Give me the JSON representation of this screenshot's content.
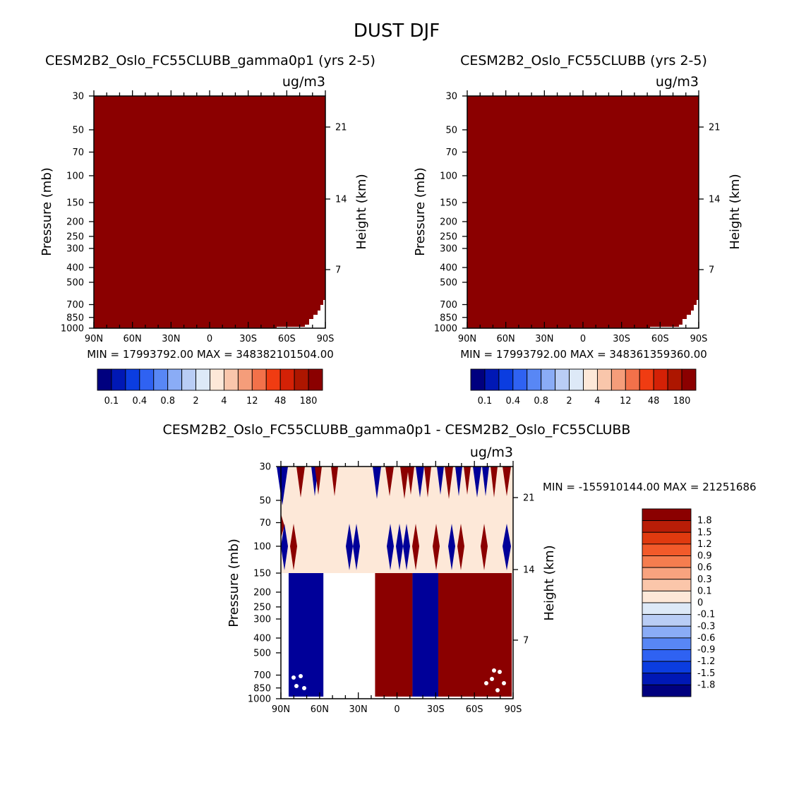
{
  "main_title": "DUST DJF",
  "colors": {
    "dark_red": "#8b0000",
    "dark_blue": "#000099",
    "cream": "#fde8d8",
    "white": "#ffffff"
  },
  "panels": [
    {
      "id": "panel-1",
      "title": "CESM2B2_Oslo_FC55CLUBB_gamma0p1 (yrs 2-5)",
      "units": "ug/m3",
      "ylabel": "Pressure (mb)",
      "ylabel_right": "Height (km)",
      "minmax": "MIN = 17993792.00   MAX = 348382101504.00"
    },
    {
      "id": "panel-2",
      "title": "CESM2B2_Oslo_FC55CLUBB (yrs 2-5)",
      "units": "ug/m3",
      "ylabel": "Pressure (mb)",
      "ylabel_right": "Height (km)",
      "minmax": "MIN = 17993792.00   MAX = 348361359360.00"
    },
    {
      "id": "panel-3",
      "title": "CESM2B2_Oslo_FC55CLUBB_gamma0p1 - CESM2B2_Oslo_FC55CLUBB",
      "units": "ug/m3",
      "ylabel": "Pressure (mb)",
      "ylabel_right": "Height (km)",
      "minmax": "MIN = -155910144.00   MAX = 21251686"
    }
  ],
  "chart_data": [
    {
      "type": "heatmap",
      "title": "CESM2B2_Oslo_FC55CLUBB_gamma0p1 (yrs 2-5)",
      "ylabel": "Pressure (mb)",
      "ylabel_right": "Height (km)",
      "units": "ug/m3",
      "x_ticks": [
        "90N",
        "60N",
        "30N",
        "0",
        "30S",
        "60S",
        "90S"
      ],
      "y_ticks": [
        30,
        50,
        70,
        100,
        150,
        200,
        250,
        300,
        400,
        500,
        700,
        850,
        1000
      ],
      "y_ticks_right": [
        21,
        14,
        7
      ],
      "ylim": [
        1000,
        30
      ],
      "y_scale": "log",
      "colorbar_labels": [
        "0.1",
        "0.4",
        "0.8",
        "2",
        "4",
        "12",
        "48",
        "180"
      ],
      "colorbar_colors": [
        "#00007f",
        "#0018b5",
        "#0b3de0",
        "#2f62f2",
        "#5887f5",
        "#8aacf6",
        "#b9cdf5",
        "#dde9f7",
        "#fde8d8",
        "#f9c6ab",
        "#f59d7a",
        "#f2714a",
        "#f03c12",
        "#d42106",
        "#ad1600",
        "#8b0000"
      ],
      "min": 17993792.0,
      "max": 348382101504.0,
      "dominant_color": "#8b0000"
    },
    {
      "type": "heatmap",
      "title": "CESM2B2_Oslo_FC55CLUBB (yrs 2-5)",
      "ylabel": "Pressure (mb)",
      "ylabel_right": "Height (km)",
      "units": "ug/m3",
      "x_ticks": [
        "90N",
        "60N",
        "30N",
        "0",
        "30S",
        "60S",
        "90S"
      ],
      "y_ticks": [
        30,
        50,
        70,
        100,
        150,
        200,
        250,
        300,
        400,
        500,
        700,
        850,
        1000
      ],
      "y_ticks_right": [
        21,
        14,
        7
      ],
      "ylim": [
        1000,
        30
      ],
      "y_scale": "log",
      "colorbar_labels": [
        "0.1",
        "0.4",
        "0.8",
        "2",
        "4",
        "12",
        "48",
        "180"
      ],
      "colorbar_colors": [
        "#00007f",
        "#0018b5",
        "#0b3de0",
        "#2f62f2",
        "#5887f5",
        "#8aacf6",
        "#b9cdf5",
        "#dde9f7",
        "#fde8d8",
        "#f9c6ab",
        "#f59d7a",
        "#f2714a",
        "#f03c12",
        "#d42106",
        "#ad1600",
        "#8b0000"
      ],
      "min": 17993792.0,
      "max": 348361359360.0,
      "dominant_color": "#8b0000"
    },
    {
      "type": "heatmap",
      "title": "CESM2B2_Oslo_FC55CLUBB_gamma0p1 - CESM2B2_Oslo_FC55CLUBB",
      "ylabel": "Pressure (mb)",
      "ylabel_right": "Height (km)",
      "units": "ug/m3",
      "x_ticks": [
        "90N",
        "60N",
        "30N",
        "0",
        "30S",
        "60S",
        "90S"
      ],
      "y_ticks": [
        30,
        50,
        70,
        100,
        150,
        200,
        250,
        300,
        400,
        500,
        700,
        850,
        1000
      ],
      "y_ticks_right": [
        21,
        14,
        7
      ],
      "ylim": [
        1000,
        30
      ],
      "y_scale": "log",
      "colorbar_labels": [
        "1.8",
        "1.5",
        "1.2",
        "0.9",
        "0.6",
        "0.3",
        "0.1",
        "0",
        "-0.1",
        "-0.3",
        "-0.6",
        "-0.9",
        "-1.2",
        "-1.5",
        "-1.8"
      ],
      "colorbar_colors": [
        "#8b0000",
        "#b81d07",
        "#e03a0f",
        "#f25a2a",
        "#f57d4f",
        "#f8a37f",
        "#fbc6aa",
        "#fde8d8",
        "#dde9f7",
        "#b9cdf5",
        "#8aacf6",
        "#5887f5",
        "#2f62f2",
        "#0b3de0",
        "#0018b5",
        "#00007f"
      ],
      "min": -155910144.0,
      "max_text": "21251686",
      "lower_regions": [
        {
          "lat_from": "84N",
          "lat_to": "57N",
          "color": "#000099"
        },
        {
          "lat_from": "57N",
          "lat_to": "17N",
          "color": "#ffffff"
        },
        {
          "lat_from": "17N",
          "lat_to": "12S",
          "color": "#8b0000"
        },
        {
          "lat_from": "12S",
          "lat_to": "32S",
          "color": "#000099"
        },
        {
          "lat_from": "32S",
          "lat_to": "89S",
          "color": "#8b0000"
        }
      ],
      "upper_background": "#fde8d8",
      "boundary_pressure": 150
    }
  ]
}
